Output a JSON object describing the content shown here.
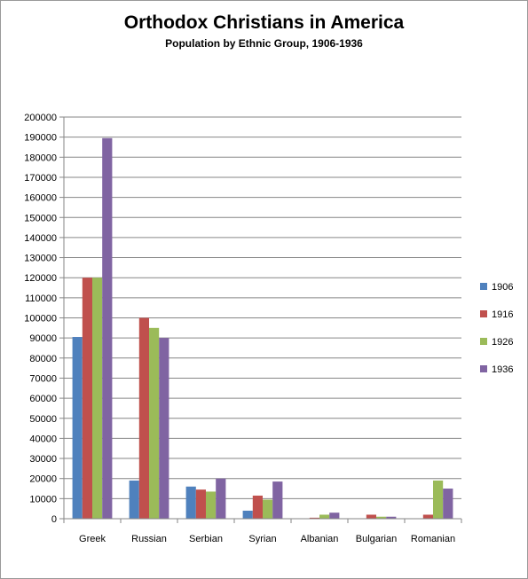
{
  "chart_data": {
    "type": "bar",
    "title": "Orthodox Christians in America",
    "subtitle": "Population by Ethnic Group, 1906-1936",
    "xlabel": "",
    "ylabel": "",
    "ylim": [
      0,
      200000
    ],
    "ytick_step": 10000,
    "grid": true,
    "legend_position": "right",
    "categories": [
      "Greek",
      "Russian",
      "Serbian",
      "Syrian",
      "Albanian",
      "Bulgarian",
      "Romanian"
    ],
    "series": [
      {
        "name": "1906",
        "color": "#4f81bd",
        "values": [
          90500,
          19000,
          16000,
          4000,
          0,
          0,
          0
        ]
      },
      {
        "name": "1916",
        "color": "#c0504d",
        "values": [
          120000,
          100000,
          14500,
          11500,
          500,
          2000,
          2000
        ]
      },
      {
        "name": "1926",
        "color": "#9bbb59",
        "values": [
          120000,
          95000,
          13500,
          9500,
          2000,
          1000,
          19000
        ]
      },
      {
        "name": "1936",
        "color": "#8064a2",
        "values": [
          189500,
          90000,
          20000,
          18500,
          3000,
          1000,
          15000
        ]
      }
    ]
  }
}
